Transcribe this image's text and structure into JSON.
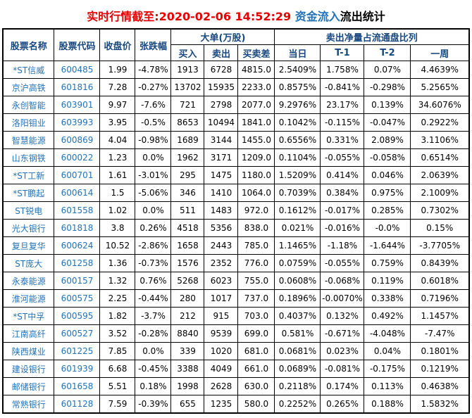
{
  "title": {
    "time_part": "实时行情截至:2020-02-06 14:52:29",
    "inflow_part": " 资金流入",
    "outflow_part": "流出统计"
  },
  "colors": {
    "title_red": "#e60000",
    "link_blue": "#2272b8",
    "header_navy": "#17477e",
    "border": "#000000",
    "background": "#ffffff"
  },
  "table": {
    "headers": {
      "stock_name": "股票名称",
      "stock_code": "股票代码",
      "close_price": "收盘价",
      "change_pct": "张跌幅",
      "big_order_group": "大单(万股)",
      "buy": "买入",
      "sell": "卖出",
      "buy_sell_diff": "买卖差",
      "net_sell_group": "卖出净量占流通盘比列",
      "today": "当日",
      "t_minus_1": "T-1",
      "t_minus_2": "T-2",
      "week": "一周"
    },
    "rows": [
      [
        "*ST信威",
        "600485",
        "1.99",
        "-4.78%",
        "1913",
        "6728",
        "4815.0",
        "2.5409%",
        "1.758%",
        "0.07%",
        "4.4639%"
      ],
      [
        "京沪高铁",
        "601816",
        "7.28",
        "-0.27%",
        "13702",
        "15935",
        "2233.0",
        "0.8575%",
        "-0.841%",
        "-0.298%",
        "5.2565%"
      ],
      [
        "永创智能",
        "603901",
        "9.97",
        "-7.6%",
        "721",
        "2798",
        "2077.0",
        "9.2976%",
        "23.17%",
        "0.139%",
        "34.6076%"
      ],
      [
        "洛阳钼业",
        "603993",
        "3.95",
        "-0.5%",
        "8653",
        "10494",
        "1841.0",
        "0.1042%",
        "-0.115%",
        "-0.047%",
        "0.2922%"
      ],
      [
        "智慧能源",
        "600869",
        "4.04",
        "-0.98%",
        "1689",
        "3144",
        "1455.0",
        "0.6556%",
        "0.331%",
        "2.089%",
        "3.1106%"
      ],
      [
        "山东钢铁",
        "600022",
        "1.23",
        "0.0%",
        "1962",
        "3171",
        "1209.0",
        "0.1104%",
        "-0.055%",
        "-0.058%",
        "0.6514%"
      ],
      [
        "*ST工新",
        "600701",
        "1.61",
        "-3.01%",
        "295",
        "1475",
        "1180.0",
        "1.5209%",
        "0.414%",
        "0.046%",
        "2.0639%"
      ],
      [
        "*ST鹏起",
        "600614",
        "1.5",
        "-5.06%",
        "346",
        "1410",
        "1064.0",
        "0.7039%",
        "0.384%",
        "0.975%",
        "2.1009%"
      ],
      [
        "ST锐电",
        "601558",
        "1.02",
        "0.0%",
        "511",
        "1483",
        "972.0",
        "0.1612%",
        "-0.017%",
        "0.285%",
        "0.7302%"
      ],
      [
        "光大银行",
        "601818",
        "3.8",
        "0.26%",
        "4518",
        "5356",
        "838.0",
        "0.021%",
        "-0.016%",
        "-0.0%",
        "0.15%"
      ],
      [
        "复旦复华",
        "600624",
        "10.52",
        "-2.86%",
        "1658",
        "2443",
        "785.0",
        "1.1465%",
        "-1.18%",
        "-1.644%",
        "-3.7705%"
      ],
      [
        "ST庞大",
        "601258",
        "1.36",
        "-0.73%",
        "1576",
        "2352",
        "776.0",
        "0.0759%",
        "-0.055%",
        "0.759%",
        "0.8439%"
      ],
      [
        "永泰能源",
        "600157",
        "1.32",
        "0.76%",
        "5268",
        "6023",
        "755.0",
        "0.0608%",
        "-0.068%",
        "0.119%",
        "0.6018%"
      ],
      [
        "淮河能源",
        "600575",
        "2.25",
        "-0.44%",
        "280",
        "1017",
        "737.0",
        "0.1896%",
        "-0.0070%",
        "0.338%",
        "0.7196%"
      ],
      [
        "*ST中孚",
        "600595",
        "1.82",
        "-3.7%",
        "212",
        "915",
        "703.0",
        "0.4037%",
        "0.132%",
        "0.492%",
        "1.1457%"
      ],
      [
        "江南高纤",
        "600527",
        "3.52",
        "-0.28%",
        "8840",
        "9539",
        "699.0",
        "0.581%",
        "-0.671%",
        "-4.048%",
        "-7.47%"
      ],
      [
        "陕西煤业",
        "601225",
        "7.85",
        "0.0%",
        "339",
        "1020",
        "681.0",
        "0.0681%",
        "0.023%",
        "0.04%",
        "0.1801%"
      ],
      [
        "建设银行",
        "601939",
        "6.68",
        "-0.45%",
        "3388",
        "4049",
        "661.0",
        "0.0689%",
        "-0.081%",
        "-0.175%",
        "0.1219%"
      ],
      [
        "邮储银行",
        "601658",
        "5.51",
        "0.18%",
        "1998",
        "2628",
        "630.0",
        "0.2118%",
        "0.174%",
        "0.113%",
        "0.4638%"
      ],
      [
        "常熟银行",
        "601128",
        "7.59",
        "-0.39%",
        "655",
        "1235",
        "580.0",
        "0.2252%",
        "0.265%",
        "0.188%",
        "1.5832%"
      ]
    ]
  }
}
